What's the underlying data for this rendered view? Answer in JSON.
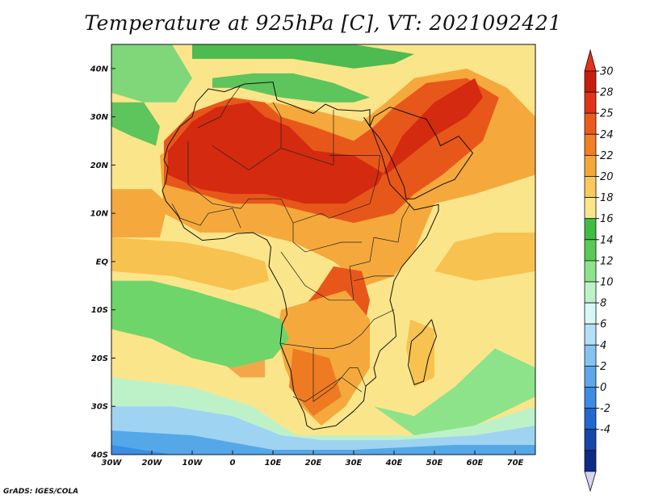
{
  "title": "Temperature at 925hPa [C], VT: 2021092421",
  "credit": "GrADS: IGES/COLA",
  "map": {
    "lon_range": [
      -30,
      75
    ],
    "lat_range": [
      -40,
      45
    ],
    "lon_ticks": [
      {
        "value": -30,
        "label": "30W"
      },
      {
        "value": -20,
        "label": "20W"
      },
      {
        "value": -10,
        "label": "10W"
      },
      {
        "value": 0,
        "label": "0"
      },
      {
        "value": 10,
        "label": "10E"
      },
      {
        "value": 20,
        "label": "20E"
      },
      {
        "value": 30,
        "label": "30E"
      },
      {
        "value": 40,
        "label": "40E"
      },
      {
        "value": 50,
        "label": "50E"
      },
      {
        "value": 60,
        "label": "60E"
      },
      {
        "value": 70,
        "label": "70E"
      }
    ],
    "lat_ticks": [
      {
        "value": 40,
        "label": "40N"
      },
      {
        "value": 30,
        "label": "30N"
      },
      {
        "value": 20,
        "label": "20N"
      },
      {
        "value": 10,
        "label": "10N"
      },
      {
        "value": 0,
        "label": "EQ"
      },
      {
        "value": -10,
        "label": "10S"
      },
      {
        "value": -20,
        "label": "20S"
      },
      {
        "value": -30,
        "label": "30S"
      },
      {
        "value": -40,
        "label": "40S"
      }
    ],
    "background_color": "#fbe58a",
    "regions": [
      {
        "color": "#f5a93c",
        "points": [
          [
            -18,
            22
          ],
          [
            -5,
            30
          ],
          [
            10,
            33
          ],
          [
            22,
            31
          ],
          [
            32,
            29
          ],
          [
            38,
            33
          ],
          [
            45,
            38
          ],
          [
            58,
            40
          ],
          [
            68,
            36
          ],
          [
            75,
            30
          ],
          [
            75,
            18
          ],
          [
            60,
            14
          ],
          [
            50,
            12
          ],
          [
            45,
            2
          ],
          [
            40,
            -3
          ],
          [
            33,
            -5
          ],
          [
            25,
            0
          ],
          [
            15,
            4
          ],
          [
            5,
            6
          ],
          [
            -8,
            6
          ],
          [
            -17,
            10
          ]
        ]
      },
      {
        "color": "#e8571a",
        "points": [
          [
            -17,
            25
          ],
          [
            -10,
            31
          ],
          [
            0,
            34
          ],
          [
            8,
            33
          ],
          [
            12,
            30
          ],
          [
            20,
            28
          ],
          [
            30,
            25
          ],
          [
            35,
            28
          ],
          [
            40,
            32
          ],
          [
            48,
            37
          ],
          [
            58,
            38
          ],
          [
            66,
            34
          ],
          [
            62,
            25
          ],
          [
            52,
            18
          ],
          [
            45,
            14
          ],
          [
            40,
            10
          ],
          [
            30,
            8
          ],
          [
            20,
            10
          ],
          [
            10,
            12
          ],
          [
            0,
            12
          ],
          [
            -8,
            14
          ],
          [
            -17,
            16
          ]
        ]
      },
      {
        "color": "#d42a10",
        "points": [
          [
            -16,
            23
          ],
          [
            -10,
            29
          ],
          [
            -4,
            32
          ],
          [
            4,
            33
          ],
          [
            8,
            30
          ],
          [
            14,
            28
          ],
          [
            20,
            23
          ],
          [
            30,
            22
          ],
          [
            38,
            18
          ],
          [
            44,
            22
          ],
          [
            50,
            26
          ],
          [
            58,
            30
          ],
          [
            62,
            34
          ],
          [
            60,
            38
          ],
          [
            50,
            33
          ],
          [
            42,
            26
          ],
          [
            36,
            16
          ],
          [
            28,
            12
          ],
          [
            18,
            12
          ],
          [
            8,
            14
          ],
          [
            0,
            14
          ],
          [
            -8,
            15
          ],
          [
            -16,
            18
          ]
        ]
      },
      {
        "color": "#e8571a",
        "points": [
          [
            25,
            -1
          ],
          [
            32,
            -2
          ],
          [
            34,
            -8
          ],
          [
            32,
            -16
          ],
          [
            30,
            -22
          ],
          [
            28,
            -26
          ],
          [
            20,
            -28
          ],
          [
            15,
            -22
          ],
          [
            13,
            -15
          ],
          [
            17,
            -10
          ],
          [
            21,
            -6
          ]
        ]
      },
      {
        "color": "#d42a10",
        "points": [
          [
            20,
            -10
          ],
          [
            28,
            -10
          ],
          [
            30,
            -16
          ],
          [
            27,
            -20
          ],
          [
            20,
            -22
          ],
          [
            16,
            -17
          ]
        ]
      },
      {
        "color": "#f5a93c",
        "points": [
          [
            12,
            -10
          ],
          [
            20,
            -8
          ],
          [
            28,
            -6
          ],
          [
            34,
            -12
          ],
          [
            34,
            -22
          ],
          [
            28,
            -30
          ],
          [
            22,
            -34
          ],
          [
            17,
            -30
          ],
          [
            13,
            -22
          ],
          [
            11,
            -15
          ]
        ]
      },
      {
        "color": "#ee7a22",
        "points": [
          [
            15,
            -18
          ],
          [
            24,
            -20
          ],
          [
            27,
            -28
          ],
          [
            20,
            -32
          ],
          [
            14,
            -26
          ]
        ]
      },
      {
        "color": "#f4a74a",
        "points": [
          [
            -6,
            -14
          ],
          [
            2,
            -15
          ],
          [
            8,
            -18
          ],
          [
            8,
            -24
          ],
          [
            2,
            -24
          ],
          [
            -4,
            -20
          ]
        ]
      },
      {
        "color": "#f7c24f",
        "points": [
          [
            44,
            -12
          ],
          [
            50,
            -14
          ],
          [
            50,
            -24
          ],
          [
            45,
            -26
          ],
          [
            43,
            -18
          ]
        ]
      },
      {
        "color": "#6ed56a",
        "points": [
          [
            -30,
            -4
          ],
          [
            -20,
            -4
          ],
          [
            -10,
            -6
          ],
          [
            -2,
            -8
          ],
          [
            6,
            -10
          ],
          [
            12,
            -12
          ],
          [
            14,
            -16
          ],
          [
            10,
            -20
          ],
          [
            0,
            -22
          ],
          [
            -10,
            -20
          ],
          [
            -20,
            -16
          ],
          [
            -30,
            -14
          ]
        ]
      },
      {
        "color": "#8de38a",
        "points": [
          [
            35,
            -30
          ],
          [
            45,
            -32
          ],
          [
            55,
            -26
          ],
          [
            65,
            -18
          ],
          [
            75,
            -22
          ],
          [
            75,
            -28
          ],
          [
            60,
            -34
          ],
          [
            45,
            -36
          ]
        ]
      },
      {
        "color": "#bdf2c9",
        "points": [
          [
            -30,
            -24
          ],
          [
            -10,
            -26
          ],
          [
            5,
            -30
          ],
          [
            12,
            -34
          ],
          [
            16,
            -36
          ],
          [
            30,
            -36
          ],
          [
            45,
            -36
          ],
          [
            60,
            -34
          ],
          [
            75,
            -30
          ],
          [
            75,
            -36
          ],
          [
            50,
            -38
          ],
          [
            20,
            -39
          ],
          [
            -10,
            -36
          ],
          [
            -30,
            -34
          ]
        ]
      },
      {
        "color": "#9fd3f2",
        "points": [
          [
            -30,
            -30
          ],
          [
            -15,
            -30
          ],
          [
            0,
            -32
          ],
          [
            12,
            -36
          ],
          [
            22,
            -37
          ],
          [
            40,
            -37
          ],
          [
            60,
            -36
          ],
          [
            75,
            -34
          ],
          [
            75,
            -40
          ],
          [
            -30,
            -40
          ]
        ]
      },
      {
        "color": "#55a8e8",
        "points": [
          [
            -30,
            -35
          ],
          [
            -10,
            -36
          ],
          [
            10,
            -39
          ],
          [
            30,
            -39
          ],
          [
            55,
            -38
          ],
          [
            75,
            -38
          ],
          [
            75,
            -40
          ],
          [
            -30,
            -40
          ]
        ]
      },
      {
        "color": "#3a8ee2",
        "points": [
          [
            -30,
            -38
          ],
          [
            -15,
            -40
          ],
          [
            -30,
            -40
          ]
        ]
      },
      {
        "color": "#5ec45c",
        "points": [
          [
            -30,
            33
          ],
          [
            -22,
            33
          ],
          [
            -18,
            28
          ],
          [
            -19,
            24
          ],
          [
            -25,
            26
          ],
          [
            -30,
            28
          ]
        ]
      },
      {
        "color": "#7fd77a",
        "points": [
          [
            -30,
            45
          ],
          [
            -15,
            45
          ],
          [
            -10,
            38
          ],
          [
            -14,
            33
          ],
          [
            -22,
            33
          ],
          [
            -30,
            35
          ]
        ]
      },
      {
        "color": "#5ec45c",
        "points": [
          [
            -5,
            38
          ],
          [
            5,
            39
          ],
          [
            15,
            39
          ],
          [
            25,
            37
          ],
          [
            34,
            34
          ],
          [
            30,
            33
          ],
          [
            22,
            33
          ],
          [
            12,
            34
          ],
          [
            2,
            36
          ],
          [
            -5,
            36
          ]
        ]
      },
      {
        "color": "#4dbb4f",
        "points": [
          [
            -10,
            45
          ],
          [
            10,
            45
          ],
          [
            30,
            45
          ],
          [
            45,
            43
          ],
          [
            40,
            41
          ],
          [
            30,
            40
          ],
          [
            15,
            42
          ],
          [
            2,
            42
          ],
          [
            -10,
            42
          ]
        ]
      },
      {
        "color": "#f5a93c",
        "points": [
          [
            -30,
            15
          ],
          [
            -20,
            15
          ],
          [
            -16,
            12
          ],
          [
            -18,
            5
          ],
          [
            -30,
            5
          ]
        ]
      },
      {
        "color": "#f7c24f",
        "points": [
          [
            -30,
            5
          ],
          [
            -12,
            4
          ],
          [
            0,
            2
          ],
          [
            8,
            0
          ],
          [
            9,
            -4
          ],
          [
            0,
            -6
          ],
          [
            -15,
            -3
          ],
          [
            -30,
            -2
          ]
        ]
      },
      {
        "color": "#f7c24f",
        "points": [
          [
            50,
            -2
          ],
          [
            60,
            -4
          ],
          [
            68,
            -3
          ],
          [
            75,
            -2
          ],
          [
            75,
            6
          ],
          [
            65,
            6
          ],
          [
            55,
            4
          ]
        ]
      }
    ]
  },
  "coastline": [
    [
      -17,
      21
    ],
    [
      -16,
      24
    ],
    [
      -13,
      28
    ],
    [
      -10,
      30
    ],
    [
      -9,
      33
    ],
    [
      -6,
      35.8
    ],
    [
      -2,
      35.2
    ],
    [
      3,
      36.8
    ],
    [
      10,
      37.2
    ],
    [
      11,
      33.5
    ],
    [
      15,
      32.3
    ],
    [
      20,
      30.7
    ],
    [
      23,
      32.6
    ],
    [
      26,
      31.5
    ],
    [
      32,
      31.2
    ],
    [
      34,
      31.5
    ],
    [
      34,
      28
    ],
    [
      32.5,
      29.9
    ],
    [
      34.5,
      27.5
    ],
    [
      37,
      22
    ],
    [
      39,
      16
    ],
    [
      43,
      12.5
    ],
    [
      45,
      10.7
    ],
    [
      51,
      11.8
    ],
    [
      51,
      10.5
    ],
    [
      48,
      5
    ],
    [
      42,
      -1
    ],
    [
      40,
      -4
    ],
    [
      39,
      -8
    ],
    [
      40,
      -11
    ],
    [
      40.5,
      -15.5
    ],
    [
      36.5,
      -18.5
    ],
    [
      35,
      -22
    ],
    [
      35.5,
      -24
    ],
    [
      33,
      -25.8
    ],
    [
      32.5,
      -28.8
    ],
    [
      30,
      -31
    ],
    [
      25.6,
      -34
    ],
    [
      20,
      -34.8
    ],
    [
      18.4,
      -34
    ],
    [
      17.8,
      -31.5
    ],
    [
      15.2,
      -27
    ],
    [
      14.4,
      -22.5
    ],
    [
      11.8,
      -17
    ],
    [
      12.3,
      -13
    ],
    [
      13.5,
      -11
    ],
    [
      13.2,
      -9
    ],
    [
      12.3,
      -6
    ],
    [
      9,
      -1
    ],
    [
      9.5,
      3
    ],
    [
      8.5,
      4.5
    ],
    [
      5,
      6
    ],
    [
      1,
      5.8
    ],
    [
      -2,
      4.8
    ],
    [
      -7.5,
      4.4
    ],
    [
      -12,
      7
    ],
    [
      -13.5,
      9.5
    ],
    [
      -16.5,
      12.5
    ],
    [
      -17.4,
      14.7
    ],
    [
      -16.5,
      16.5
    ],
    [
      -16,
      19.5
    ],
    [
      -17,
      21
    ]
  ],
  "madagascar": [
    [
      49.3,
      -12
    ],
    [
      50.5,
      -15.5
    ],
    [
      49.8,
      -17
    ],
    [
      48.5,
      -20
    ],
    [
      47.3,
      -24.8
    ],
    [
      45,
      -25.5
    ],
    [
      43.5,
      -21.5
    ],
    [
      44.3,
      -16.5
    ],
    [
      47,
      -14.5
    ],
    [
      49.3,
      -12
    ]
  ],
  "arabia": [
    [
      34,
      28
    ],
    [
      35,
      30
    ],
    [
      39,
      32
    ],
    [
      46,
      30
    ],
    [
      48,
      29.5
    ],
    [
      50.5,
      26
    ],
    [
      51.5,
      24
    ],
    [
      56,
      26
    ],
    [
      59.5,
      22.5
    ],
    [
      55,
      17
    ],
    [
      52,
      16
    ],
    [
      45,
      13
    ],
    [
      43,
      13
    ],
    [
      42.5,
      15.5
    ],
    [
      39,
      22
    ],
    [
      36.5,
      25.5
    ],
    [
      34,
      28
    ]
  ],
  "colorbar": {
    "labels": [
      "30",
      "28",
      "25",
      "24",
      "22",
      "20",
      "18",
      "16",
      "14",
      "12",
      "10",
      "8",
      "6",
      "4",
      "2",
      "0",
      "-2",
      "-4"
    ],
    "colors": [
      "#c81d0c",
      "#e1331a",
      "#ea5c1c",
      "#f27f21",
      "#f5a83a",
      "#f8c95c",
      "#fbe68a",
      "#3fbd42",
      "#5ac957",
      "#8de38a",
      "#bdf2c9",
      "#d9f7f4",
      "#b3e0f6",
      "#86c4f0",
      "#5ea8ea",
      "#3d8be2",
      "#2168d0",
      "#1547a8",
      "#0f2a86"
    ],
    "max_color": "#e1331a",
    "min_color": "#d6d4f2"
  }
}
